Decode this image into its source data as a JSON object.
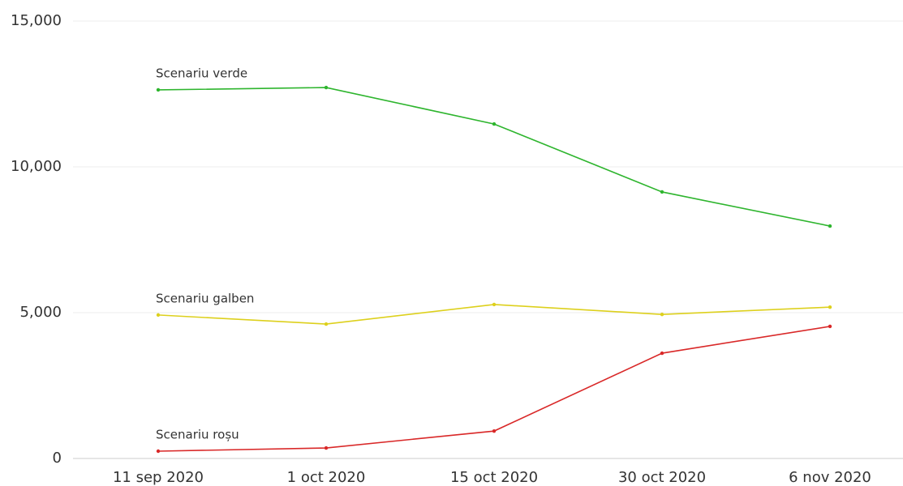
{
  "chart_data": {
    "type": "line",
    "categories": [
      "11 sep 2020",
      "1 oct 2020",
      "15 oct 2020",
      "30 oct 2020",
      "6 nov 2020"
    ],
    "series": [
      {
        "name": "Scenariu verde",
        "color": "#2eb52e",
        "values": [
          12640,
          12720,
          11470,
          9140,
          7970
        ]
      },
      {
        "name": "Scenariu galben",
        "color": "#ddd01c",
        "values": [
          4920,
          4610,
          5280,
          4940,
          5190
        ]
      },
      {
        "name": "Scenariu roșu",
        "color": "#d92828",
        "values": [
          250,
          360,
          940,
          3610,
          4530
        ]
      }
    ],
    "ylim": [
      0,
      15000
    ],
    "yticks": [
      0,
      {
        "value": 5000,
        "label": "5,000"
      },
      {
        "value": 10000,
        "label": "10,000"
      },
      {
        "value": 15000,
        "label": "15,000"
      }
    ],
    "grid": true
  }
}
